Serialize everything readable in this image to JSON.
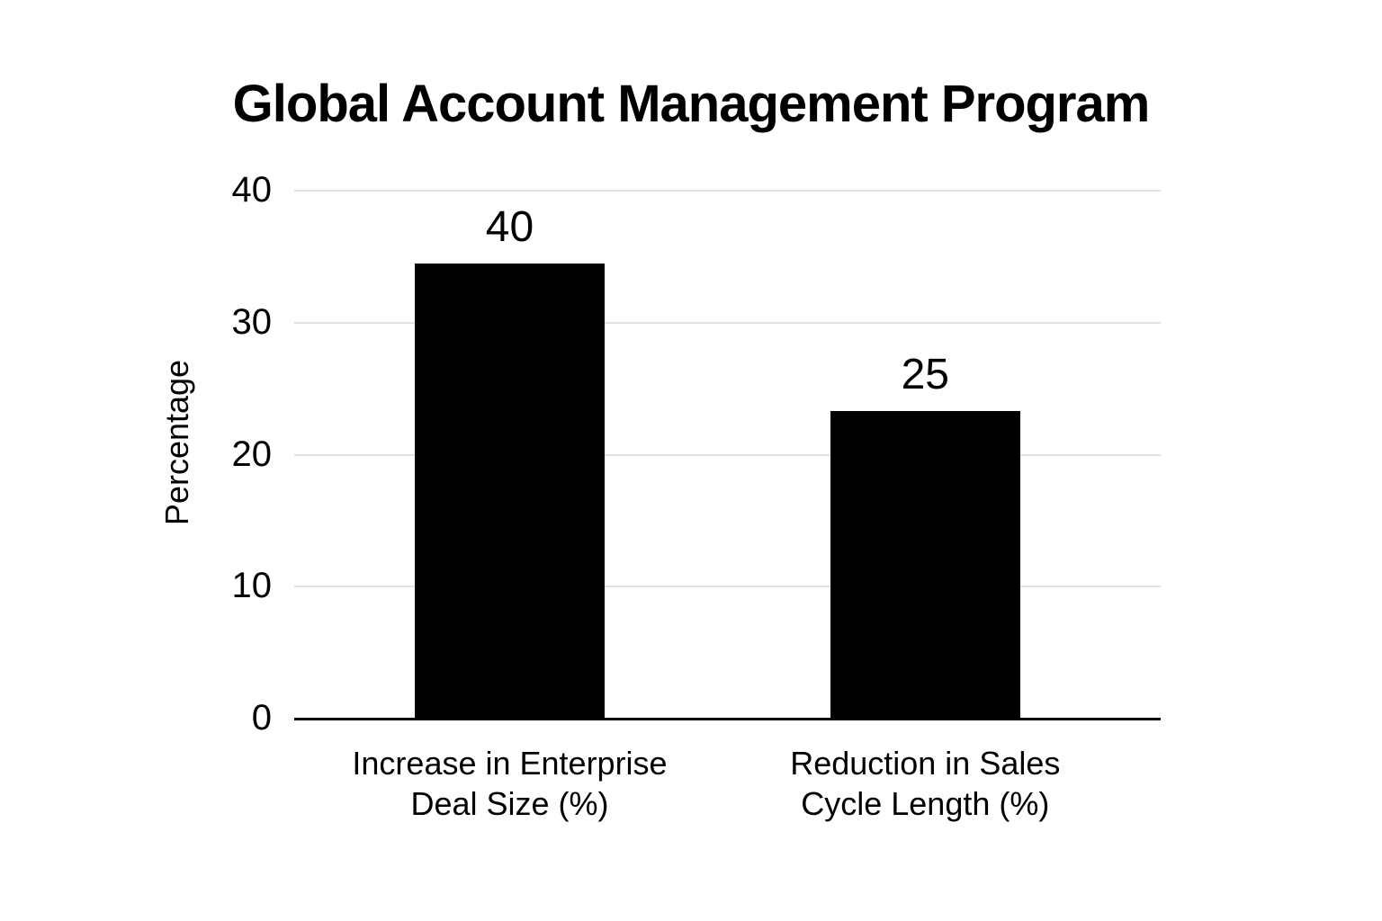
{
  "chart_data": {
    "type": "bar",
    "title": "Global Account Management Program",
    "ylabel": "Percentage",
    "xlabel": "",
    "categories": [
      [
        "Increase in Enterprise",
        "Deal Size (%)"
      ],
      [
        "Reduction in Sales",
        "Cycle Length (%)"
      ]
    ],
    "values": [
      40,
      25
    ],
    "bar_drawn_values": [
      34.5,
      23.3
    ],
    "yticks": [
      0,
      10,
      20,
      30,
      40
    ],
    "ylim": [
      0,
      40
    ],
    "grid": "horizontal-light",
    "legend": "none",
    "colors": {
      "bar": "#000000",
      "background": "#ffffff",
      "gridline": "#e2e2e2",
      "axis_line": "#000000",
      "text": "#000000"
    }
  }
}
